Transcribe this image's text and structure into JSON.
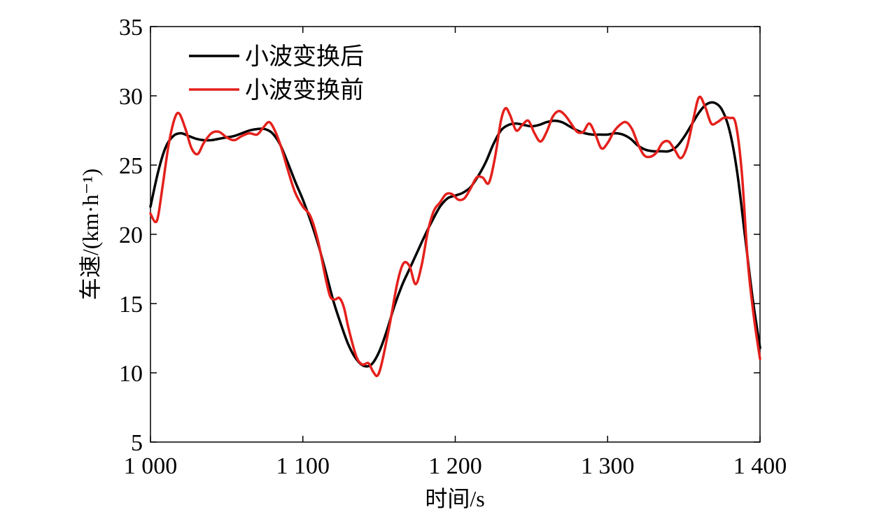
{
  "chart_data": {
    "type": "line",
    "xlabel": "时间/s",
    "ylabel": "车速/(km·h⁻¹)",
    "xlim": [
      1000,
      1400
    ],
    "ylim": [
      5,
      35
    ],
    "xticks": [
      1000,
      1100,
      1200,
      1300,
      1400
    ],
    "xtick_labels": [
      "1 000",
      "1 100",
      "1 200",
      "1 300",
      "1 400"
    ],
    "yticks": [
      5,
      10,
      15,
      20,
      25,
      30,
      35
    ],
    "ytick_labels": [
      "5",
      "10",
      "15",
      "20",
      "25",
      "30",
      "35"
    ],
    "grid": false,
    "legend_position": "top-left",
    "series": [
      {
        "name": "小波变换后",
        "color": "#000000",
        "x": [
          1000,
          1005,
          1010,
          1015,
          1020,
          1025,
          1030,
          1035,
          1040,
          1045,
          1050,
          1055,
          1060,
          1065,
          1070,
          1075,
          1080,
          1085,
          1090,
          1095,
          1100,
          1105,
          1110,
          1115,
          1120,
          1125,
          1130,
          1135,
          1140,
          1145,
          1150,
          1155,
          1160,
          1165,
          1170,
          1175,
          1180,
          1185,
          1190,
          1195,
          1200,
          1205,
          1210,
          1215,
          1220,
          1225,
          1230,
          1235,
          1240,
          1245,
          1250,
          1255,
          1260,
          1265,
          1270,
          1275,
          1280,
          1285,
          1290,
          1295,
          1300,
          1305,
          1310,
          1315,
          1320,
          1325,
          1330,
          1335,
          1340,
          1345,
          1350,
          1355,
          1360,
          1365,
          1370,
          1375,
          1380,
          1385,
          1390,
          1395,
          1400
        ],
        "values": [
          22.0,
          24.5,
          26.3,
          27.1,
          27.3,
          27.1,
          26.9,
          26.8,
          26.8,
          26.9,
          27.0,
          27.1,
          27.3,
          27.5,
          27.6,
          27.6,
          27.3,
          26.5,
          25.2,
          23.8,
          22.5,
          21.0,
          19.3,
          17.3,
          15.2,
          13.5,
          12.0,
          11.0,
          10.5,
          10.6,
          11.5,
          13.0,
          14.8,
          16.3,
          17.5,
          18.7,
          19.9,
          21.0,
          22.0,
          22.6,
          22.8,
          23.0,
          23.4,
          24.2,
          25.2,
          26.5,
          27.5,
          27.9,
          28.0,
          27.9,
          27.8,
          27.9,
          28.1,
          28.2,
          28.1,
          27.8,
          27.5,
          27.3,
          27.2,
          27.2,
          27.2,
          27.3,
          27.2,
          26.9,
          26.4,
          26.1,
          26.0,
          26.0,
          26.0,
          26.3,
          27.0,
          27.9,
          28.8,
          29.4,
          29.5,
          29.0,
          27.5,
          24.5,
          20.0,
          15.5,
          11.8
        ]
      },
      {
        "name": "小波变换前",
        "color": "#e4201c",
        "x": [
          1000,
          1003,
          1005,
          1008,
          1012,
          1016,
          1019,
          1023,
          1027,
          1031,
          1035,
          1040,
          1045,
          1050,
          1055,
          1060,
          1065,
          1070,
          1074,
          1078,
          1082,
          1086,
          1090,
          1095,
          1100,
          1105,
          1110,
          1115,
          1118,
          1121,
          1124,
          1127,
          1130,
          1135,
          1139,
          1143,
          1146,
          1149,
          1152,
          1157,
          1162,
          1166,
          1170,
          1174,
          1178,
          1182,
          1186,
          1190,
          1194,
          1198,
          1202,
          1206,
          1210,
          1214,
          1218,
          1222,
          1226,
          1230,
          1233,
          1236,
          1240,
          1244,
          1248,
          1252,
          1256,
          1260,
          1264,
          1268,
          1272,
          1276,
          1280,
          1284,
          1288,
          1292,
          1296,
          1300,
          1304,
          1308,
          1312,
          1316,
          1320,
          1324,
          1328,
          1332,
          1336,
          1340,
          1344,
          1348,
          1352,
          1356,
          1360,
          1364,
          1368,
          1372,
          1376,
          1380,
          1384,
          1388,
          1392,
          1396,
          1400
        ],
        "values": [
          21.5,
          20.9,
          21.3,
          23.5,
          26.5,
          28.4,
          28.7,
          27.6,
          26.2,
          25.8,
          26.6,
          27.3,
          27.4,
          27.0,
          26.8,
          27.1,
          27.3,
          27.2,
          27.7,
          28.1,
          27.4,
          26.2,
          24.7,
          23.0,
          22.0,
          21.3,
          19.5,
          16.8,
          15.5,
          15.3,
          15.4,
          14.7,
          13.2,
          11.2,
          10.6,
          10.7,
          10.1,
          9.8,
          10.8,
          13.5,
          16.5,
          17.9,
          17.7,
          16.4,
          17.8,
          20.2,
          21.7,
          22.3,
          22.9,
          22.9,
          22.5,
          22.6,
          23.3,
          24.1,
          24.1,
          23.7,
          25.5,
          28.2,
          29.1,
          28.6,
          27.5,
          27.9,
          28.2,
          27.3,
          26.7,
          27.4,
          28.5,
          28.9,
          28.6,
          28.0,
          27.4,
          27.4,
          28.0,
          27.2,
          26.2,
          26.6,
          27.4,
          27.9,
          28.1,
          27.6,
          26.5,
          25.7,
          25.6,
          25.9,
          26.6,
          26.7,
          26.1,
          25.5,
          26.3,
          28.2,
          29.9,
          29.2,
          28.0,
          28.1,
          28.4,
          28.4,
          28.0,
          24.5,
          18.0,
          14.0,
          11.0
        ]
      }
    ]
  }
}
